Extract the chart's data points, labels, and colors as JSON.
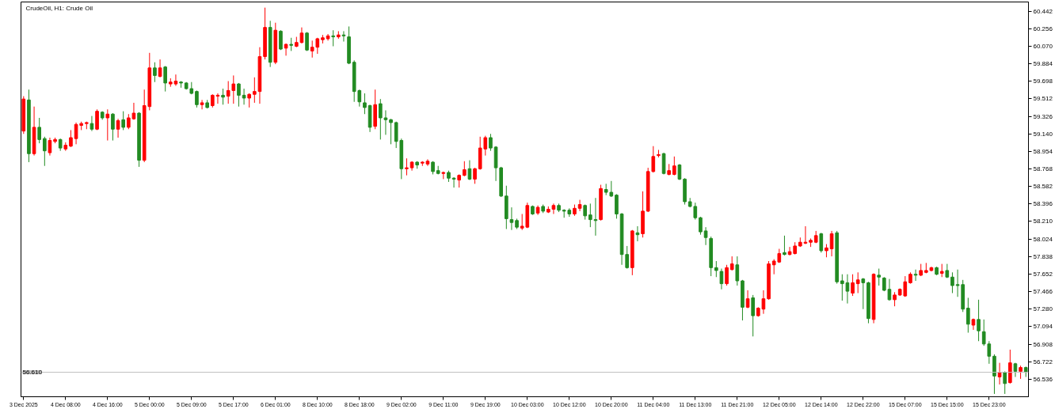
{
  "chart_data": {
    "type": "candlestick",
    "title": "CrudeOil, H1: Crude Oil",
    "categories": [
      "3 Dec 2025",
      null,
      null,
      null,
      null,
      null,
      null,
      null,
      "4 Dec 08:00",
      null,
      null,
      null,
      null,
      null,
      null,
      null,
      "4 Dec 16:00",
      null,
      null,
      null,
      null,
      null,
      null,
      null,
      "5 Dec 00:00",
      null,
      null,
      null,
      null,
      null,
      null,
      null,
      "5 Dec 09:00",
      null,
      null,
      null,
      null,
      null,
      null,
      null,
      "5 Dec 17:00",
      null,
      null,
      null,
      null,
      null,
      null,
      null,
      "6 Dec 01:00",
      null,
      null,
      null,
      null,
      null,
      null,
      null,
      "8 Dec 10:00",
      null,
      null,
      null,
      null,
      null,
      null,
      null,
      "8 Dec 18:00",
      null,
      null,
      null,
      null,
      null,
      null,
      null,
      "9 Dec 02:00",
      null,
      null,
      null,
      null,
      null,
      null,
      null,
      "9 Dec 11:00",
      null,
      null,
      null,
      null,
      null,
      null,
      null,
      "9 Dec 19:00",
      null,
      null,
      null,
      null,
      null,
      null,
      null,
      "10 Dec 03:00",
      null,
      null,
      null,
      null,
      null,
      null,
      null,
      "10 Dec 12:00",
      null,
      null,
      null,
      null,
      null,
      null,
      null,
      "10 Dec 20:00",
      null,
      null,
      null,
      null,
      null,
      null,
      null,
      "11 Dec 04:00",
      null,
      null,
      null,
      null,
      null,
      null,
      null,
      "11 Dec 13:00",
      null,
      null,
      null,
      null,
      null,
      null,
      null,
      "11 Dec 21:00",
      null,
      null,
      null,
      null,
      null,
      null,
      null,
      "12 Dec 05:00",
      null,
      null,
      null,
      null,
      null,
      null,
      null,
      "12 Dec 14:00",
      null,
      null,
      null,
      null,
      null,
      null,
      null,
      "12 Dec 22:00",
      null,
      null,
      null,
      null,
      null,
      null,
      null,
      "15 Dec 07:00",
      null,
      null,
      null,
      null,
      null,
      null,
      null,
      "15 Dec 15:00",
      null,
      null,
      null,
      null,
      null,
      null,
      null,
      "15 Dec 23:00",
      null,
      null,
      null,
      null,
      null,
      null,
      null
    ],
    "ohlc": [
      [
        59.17,
        59.54,
        59.14,
        59.51
      ],
      [
        59.5,
        59.61,
        58.84,
        58.93
      ],
      [
        58.93,
        59.43,
        58.91,
        59.21
      ],
      [
        59.21,
        59.31,
        59.04,
        59.08
      ],
      [
        59.09,
        59.11,
        58.8,
        58.96
      ],
      [
        58.94,
        59.1,
        58.91,
        59.07
      ],
      [
        59.06,
        59.1,
        59.04,
        59.08
      ],
      [
        59.08,
        59.09,
        58.96,
        58.99
      ],
      [
        58.98,
        59.05,
        58.96,
        59.02
      ],
      [
        59.01,
        59.18,
        59.0,
        59.1
      ],
      [
        59.09,
        59.26,
        59.03,
        59.24
      ],
      [
        59.23,
        59.27,
        59.18,
        59.25
      ],
      [
        59.25,
        59.27,
        59.19,
        59.26
      ],
      [
        59.25,
        59.33,
        59.17,
        59.19
      ],
      [
        59.19,
        59.4,
        59.18,
        59.38
      ],
      [
        59.37,
        59.38,
        59.29,
        59.31
      ],
      [
        59.31,
        59.4,
        59.07,
        59.35
      ],
      [
        59.35,
        59.36,
        59.07,
        59.19
      ],
      [
        59.19,
        59.3,
        59.1,
        59.28
      ],
      [
        59.29,
        59.38,
        59.18,
        59.21
      ],
      [
        59.21,
        59.35,
        59.19,
        59.31
      ],
      [
        59.3,
        59.47,
        59.29,
        59.36
      ],
      [
        59.36,
        59.37,
        58.79,
        58.86
      ],
      [
        58.86,
        59.61,
        58.84,
        59.44
      ],
      [
        59.43,
        60.0,
        59.39,
        59.84
      ],
      [
        59.84,
        59.9,
        59.69,
        59.76
      ],
      [
        59.75,
        59.93,
        59.74,
        59.84
      ],
      [
        59.85,
        59.86,
        59.59,
        59.68
      ],
      [
        59.67,
        59.73,
        59.64,
        59.69
      ],
      [
        59.67,
        59.77,
        59.65,
        59.7
      ],
      [
        59.69,
        59.7,
        59.63,
        59.68
      ],
      [
        59.68,
        59.69,
        59.61,
        59.62
      ],
      [
        59.62,
        59.69,
        59.56,
        59.57
      ],
      [
        59.59,
        59.6,
        59.42,
        59.45
      ],
      [
        59.45,
        59.5,
        59.4,
        59.47
      ],
      [
        59.47,
        59.5,
        59.41,
        59.42
      ],
      [
        59.44,
        59.56,
        59.42,
        59.55
      ],
      [
        59.54,
        59.57,
        59.46,
        59.55
      ],
      [
        59.55,
        59.62,
        59.45,
        59.53
      ],
      [
        59.54,
        59.7,
        59.46,
        59.6
      ],
      [
        59.6,
        59.76,
        59.46,
        59.67
      ],
      [
        59.67,
        59.68,
        59.43,
        59.55
      ],
      [
        59.55,
        59.62,
        59.45,
        59.52
      ],
      [
        59.52,
        59.57,
        59.42,
        59.56
      ],
      [
        59.56,
        59.74,
        59.47,
        59.59
      ],
      [
        59.59,
        60.06,
        59.46,
        59.96
      ],
      [
        59.96,
        60.48,
        59.93,
        60.27
      ],
      [
        60.27,
        60.34,
        59.85,
        59.9
      ],
      [
        59.9,
        60.32,
        59.88,
        60.24
      ],
      [
        60.23,
        60.24,
        60.03,
        60.04
      ],
      [
        60.05,
        60.1,
        59.97,
        60.09
      ],
      [
        60.09,
        60.16,
        60.02,
        60.08
      ],
      [
        60.07,
        60.17,
        60.06,
        60.11
      ],
      [
        60.11,
        60.27,
        60.1,
        60.21
      ],
      [
        60.21,
        60.22,
        60.02,
        60.03
      ],
      [
        60.02,
        60.13,
        59.95,
        60.06
      ],
      [
        60.06,
        60.16,
        59.99,
        60.15
      ],
      [
        60.14,
        60.19,
        60.1,
        60.16
      ],
      [
        60.15,
        60.2,
        60.13,
        60.18
      ],
      [
        60.18,
        60.24,
        60.07,
        60.17
      ],
      [
        60.17,
        60.23,
        60.15,
        60.19
      ],
      [
        60.19,
        60.23,
        60.12,
        60.18
      ],
      [
        60.17,
        60.28,
        59.88,
        59.89
      ],
      [
        59.9,
        59.92,
        59.48,
        59.59
      ],
      [
        59.6,
        59.61,
        59.43,
        59.48
      ],
      [
        59.47,
        59.57,
        59.35,
        59.42
      ],
      [
        59.44,
        59.45,
        59.16,
        59.21
      ],
      [
        59.22,
        59.61,
        59.19,
        59.45
      ],
      [
        59.46,
        59.51,
        59.08,
        59.31
      ],
      [
        59.31,
        59.39,
        59.13,
        59.29
      ],
      [
        59.29,
        59.3,
        59.03,
        59.26
      ],
      [
        59.26,
        59.27,
        58.99,
        59.06
      ],
      [
        59.07,
        59.09,
        58.66,
        58.77
      ],
      [
        58.77,
        58.88,
        58.7,
        58.78
      ],
      [
        58.78,
        58.85,
        58.75,
        58.84
      ],
      [
        58.84,
        58.85,
        58.77,
        58.81
      ],
      [
        58.83,
        58.85,
        58.8,
        58.84
      ],
      [
        58.82,
        58.87,
        58.8,
        58.85
      ],
      [
        58.84,
        58.85,
        58.71,
        58.74
      ],
      [
        58.75,
        58.8,
        58.71,
        58.72
      ],
      [
        58.72,
        58.74,
        58.66,
        58.73
      ],
      [
        58.73,
        58.75,
        58.63,
        58.67
      ],
      [
        58.67,
        58.68,
        58.57,
        58.66
      ],
      [
        58.65,
        58.71,
        58.57,
        58.7
      ],
      [
        58.7,
        58.85,
        58.69,
        58.76
      ],
      [
        58.77,
        58.86,
        58.65,
        58.66
      ],
      [
        58.66,
        58.78,
        58.61,
        58.77
      ],
      [
        58.77,
        59.11,
        58.76,
        58.99
      ],
      [
        58.98,
        59.12,
        58.91,
        59.1
      ],
      [
        59.1,
        59.14,
        58.96,
        58.99
      ],
      [
        59.0,
        59.01,
        58.64,
        58.78
      ],
      [
        58.78,
        58.79,
        58.47,
        58.48
      ],
      [
        58.48,
        58.59,
        58.13,
        58.24
      ],
      [
        58.23,
        58.36,
        58.12,
        58.2
      ],
      [
        58.22,
        58.24,
        58.13,
        58.15
      ],
      [
        58.14,
        58.29,
        58.12,
        58.16
      ],
      [
        58.15,
        58.41,
        58.14,
        58.38
      ],
      [
        58.37,
        58.38,
        58.28,
        58.29
      ],
      [
        58.3,
        58.38,
        58.28,
        58.36
      ],
      [
        58.37,
        58.39,
        58.3,
        58.32
      ],
      [
        58.31,
        58.37,
        58.3,
        58.34
      ],
      [
        58.34,
        58.4,
        58.29,
        58.38
      ],
      [
        58.38,
        58.4,
        58.31,
        58.33
      ],
      [
        58.33,
        58.34,
        58.25,
        58.32
      ],
      [
        58.33,
        58.35,
        58.26,
        58.29
      ],
      [
        58.29,
        58.39,
        58.27,
        58.35
      ],
      [
        58.35,
        58.44,
        58.32,
        58.39
      ],
      [
        58.38,
        58.39,
        58.23,
        58.27
      ],
      [
        58.28,
        58.4,
        58.15,
        58.23
      ],
      [
        58.23,
        58.46,
        58.06,
        58.22
      ],
      [
        58.23,
        58.6,
        58.22,
        58.56
      ],
      [
        58.55,
        58.61,
        58.49,
        58.52
      ],
      [
        58.52,
        58.64,
        58.47,
        58.48
      ],
      [
        58.49,
        58.5,
        58.24,
        58.29
      ],
      [
        58.29,
        58.3,
        57.75,
        57.86
      ],
      [
        57.86,
        57.95,
        57.71,
        57.72
      ],
      [
        57.72,
        58.12,
        57.64,
        58.11
      ],
      [
        58.09,
        58.16,
        58.0,
        58.07
      ],
      [
        58.08,
        58.53,
        58.04,
        58.32
      ],
      [
        58.32,
        58.78,
        58.31,
        58.74
      ],
      [
        58.74,
        59.01,
        58.73,
        58.9
      ],
      [
        58.91,
        58.97,
        58.89,
        58.92
      ],
      [
        58.93,
        58.94,
        58.71,
        58.72
      ],
      [
        58.71,
        58.82,
        58.7,
        58.75
      ],
      [
        58.71,
        58.9,
        58.7,
        58.8
      ],
      [
        58.81,
        58.82,
        58.65,
        58.66
      ],
      [
        58.66,
        58.67,
        58.39,
        58.42
      ],
      [
        58.42,
        58.46,
        58.36,
        58.37
      ],
      [
        58.37,
        58.41,
        58.23,
        58.25
      ],
      [
        58.25,
        58.26,
        58.07,
        58.1
      ],
      [
        58.11,
        58.15,
        57.96,
        58.04
      ],
      [
        58.03,
        58.05,
        57.63,
        57.72
      ],
      [
        57.72,
        57.79,
        57.62,
        57.69
      ],
      [
        57.68,
        57.71,
        57.49,
        57.55
      ],
      [
        57.55,
        57.75,
        57.53,
        57.72
      ],
      [
        57.7,
        57.84,
        57.69,
        57.76
      ],
      [
        57.75,
        57.84,
        57.53,
        57.58
      ],
      [
        57.58,
        57.59,
        57.16,
        57.3
      ],
      [
        57.3,
        57.48,
        57.29,
        57.39
      ],
      [
        57.4,
        57.43,
        56.99,
        57.21
      ],
      [
        57.21,
        57.3,
        57.2,
        57.29
      ],
      [
        57.28,
        57.48,
        57.23,
        57.39
      ],
      [
        57.39,
        57.79,
        57.38,
        57.76
      ],
      [
        57.75,
        57.81,
        57.65,
        57.79
      ],
      [
        57.78,
        57.92,
        57.77,
        57.87
      ],
      [
        57.88,
        58.06,
        57.85,
        57.86
      ],
      [
        57.86,
        57.94,
        57.85,
        57.89
      ],
      [
        57.87,
        57.99,
        57.86,
        57.95
      ],
      [
        57.95,
        58.04,
        57.94,
        57.99
      ],
      [
        57.98,
        58.16,
        57.97,
        57.99
      ],
      [
        57.99,
        58.03,
        57.94,
        58.01
      ],
      [
        57.99,
        58.11,
        57.98,
        58.06
      ],
      [
        58.08,
        58.09,
        57.88,
        57.9
      ],
      [
        57.9,
        57.97,
        57.83,
        57.93
      ],
      [
        57.92,
        58.11,
        57.84,
        58.08
      ],
      [
        58.09,
        58.11,
        57.55,
        57.57
      ],
      [
        57.58,
        57.65,
        57.37,
        57.55
      ],
      [
        57.56,
        57.65,
        57.34,
        57.47
      ],
      [
        57.45,
        57.65,
        57.42,
        57.56
      ],
      [
        57.55,
        57.67,
        57.45,
        57.59
      ],
      [
        57.6,
        57.61,
        57.28,
        57.56
      ],
      [
        57.56,
        57.57,
        57.13,
        57.18
      ],
      [
        57.17,
        57.66,
        57.13,
        57.65
      ],
      [
        57.64,
        57.71,
        57.53,
        57.62
      ],
      [
        57.61,
        57.62,
        57.47,
        57.48
      ],
      [
        57.49,
        57.6,
        57.37,
        57.38
      ],
      [
        57.38,
        57.46,
        57.31,
        57.43
      ],
      [
        57.43,
        57.5,
        57.42,
        57.49
      ],
      [
        57.42,
        57.63,
        57.41,
        57.57
      ],
      [
        57.56,
        57.67,
        57.55,
        57.65
      ],
      [
        57.65,
        57.7,
        57.58,
        57.64
      ],
      [
        57.64,
        57.76,
        57.63,
        57.69
      ],
      [
        57.67,
        57.77,
        57.66,
        57.69
      ],
      [
        57.69,
        57.73,
        57.68,
        57.72
      ],
      [
        57.72,
        57.73,
        57.64,
        57.65
      ],
      [
        57.66,
        57.76,
        57.62,
        57.68
      ],
      [
        57.69,
        57.76,
        57.61,
        57.62
      ],
      [
        57.62,
        57.67,
        57.45,
        57.53
      ],
      [
        57.54,
        57.7,
        57.41,
        57.53
      ],
      [
        57.54,
        57.59,
        57.25,
        57.28
      ],
      [
        57.29,
        57.4,
        57.03,
        57.12
      ],
      [
        57.11,
        57.18,
        57.06,
        57.17
      ],
      [
        57.17,
        57.38,
        56.94,
        57.05
      ],
      [
        57.04,
        57.17,
        56.89,
        56.91
      ],
      [
        56.91,
        56.94,
        56.7,
        56.78
      ],
      [
        56.78,
        56.8,
        56.38,
        56.57
      ],
      [
        56.56,
        56.71,
        56.48,
        56.61
      ],
      [
        56.61,
        56.62,
        56.38,
        56.49
      ],
      [
        56.5,
        56.85,
        56.49,
        56.71
      ],
      [
        56.7,
        56.71,
        56.56,
        56.62
      ],
      [
        56.62,
        56.68,
        56.54,
        56.66
      ],
      [
        56.66,
        56.67,
        56.56,
        56.61
      ]
    ],
    "colors": [
      "#ff0000",
      "#228b22",
      "#ff0000",
      "#228b22",
      "#228b22",
      "#ff0000",
      "#ff0000",
      "#228b22",
      "#ff0000",
      "#ff0000",
      "#ff0000",
      "#ff0000",
      "#ff0000",
      "#228b22",
      "#ff0000",
      "#228b22",
      "#ff0000",
      "#228b22",
      "#ff0000",
      "#228b22",
      "#ff0000",
      "#ff0000",
      "#228b22",
      "#ff0000",
      "#ff0000",
      "#228b22",
      "#ff0000",
      "#228b22",
      "#ff0000",
      "#ff0000",
      "#228b22",
      "#228b22",
      "#228b22",
      "#228b22",
      "#ff0000",
      "#228b22",
      "#ff0000",
      "#ff0000",
      "#228b22",
      "#ff0000",
      "#ff0000",
      "#228b22",
      "#228b22",
      "#ff0000",
      "#ff0000",
      "#ff0000",
      "#ff0000",
      "#228b22",
      "#ff0000",
      "#228b22",
      "#ff0000",
      "#228b22",
      "#ff0000",
      "#ff0000",
      "#228b22",
      "#ff0000",
      "#ff0000",
      "#ff0000",
      "#ff0000",
      "#228b22",
      "#ff0000",
      "#228b22",
      "#228b22",
      "#228b22",
      "#228b22",
      "#228b22",
      "#228b22",
      "#ff0000",
      "#228b22",
      "#228b22",
      "#228b22",
      "#228b22",
      "#228b22",
      "#ff0000",
      "#ff0000",
      "#228b22",
      "#ff0000",
      "#ff0000",
      "#228b22",
      "#228b22",
      "#ff0000",
      "#228b22",
      "#228b22",
      "#ff0000",
      "#ff0000",
      "#228b22",
      "#ff0000",
      "#ff0000",
      "#ff0000",
      "#228b22",
      "#228b22",
      "#228b22",
      "#228b22",
      "#228b22",
      "#228b22",
      "#ff0000",
      "#ff0000",
      "#228b22",
      "#ff0000",
      "#228b22",
      "#ff0000",
      "#ff0000",
      "#228b22",
      "#228b22",
      "#228b22",
      "#ff0000",
      "#ff0000",
      "#228b22",
      "#228b22",
      "#228b22",
      "#ff0000",
      "#228b22",
      "#228b22",
      "#228b22",
      "#228b22",
      "#228b22",
      "#ff0000",
      "#228b22",
      "#ff0000",
      "#ff0000",
      "#ff0000",
      "#ff0000",
      "#228b22",
      "#ff0000",
      "#ff0000",
      "#228b22",
      "#228b22",
      "#228b22",
      "#228b22",
      "#228b22",
      "#228b22",
      "#228b22",
      "#228b22",
      "#228b22",
      "#ff0000",
      "#ff0000",
      "#228b22",
      "#228b22",
      "#ff0000",
      "#228b22",
      "#ff0000",
      "#ff0000",
      "#ff0000",
      "#ff0000",
      "#ff0000",
      "#228b22",
      "#ff0000",
      "#ff0000",
      "#ff0000",
      "#ff0000",
      "#ff0000",
      "#ff0000",
      "#228b22",
      "#ff0000",
      "#ff0000",
      "#228b22",
      "#228b22",
      "#228b22",
      "#ff0000",
      "#ff0000",
      "#228b22",
      "#228b22",
      "#ff0000",
      "#228b22",
      "#228b22",
      "#228b22",
      "#ff0000",
      "#ff0000",
      "#ff0000",
      "#ff0000",
      "#228b22",
      "#ff0000",
      "#ff0000",
      "#ff0000",
      "#228b22",
      "#ff0000",
      "#228b22",
      "#228b22",
      "#228b22",
      "#228b22",
      "#228b22",
      "#ff0000",
      "#228b22",
      "#228b22",
      "#228b22",
      "#228b22",
      "#ff0000",
      "#228b22",
      "#ff0000",
      "#228b22",
      "#ff0000",
      "#228b22"
    ],
    "ylim": [
      56.35,
      60.54
    ],
    "yticks": [
      {
        "value": 60.442,
        "label": "60.442"
      },
      {
        "value": 60.256,
        "label": "60.256"
      },
      {
        "value": 60.07,
        "label": "60.070"
      },
      {
        "value": 59.884,
        "label": "59.884"
      },
      {
        "value": 59.698,
        "label": "59.698"
      },
      {
        "value": 59.512,
        "label": "59.512"
      },
      {
        "value": 59.326,
        "label": "59.326"
      },
      {
        "value": 59.14,
        "label": "59.140"
      },
      {
        "value": 58.954,
        "label": "58.954"
      },
      {
        "value": 58.768,
        "label": "58.768"
      },
      {
        "value": 58.582,
        "label": "58.582"
      },
      {
        "value": 58.396,
        "label": "58.396"
      },
      {
        "value": 58.21,
        "label": "58.210"
      },
      {
        "value": 58.024,
        "label": "58.024"
      },
      {
        "value": 57.838,
        "label": "57.838"
      },
      {
        "value": 57.652,
        "label": "57.652"
      },
      {
        "value": 57.466,
        "label": "57.466"
      },
      {
        "value": 57.28,
        "label": "57.280"
      },
      {
        "value": 57.094,
        "label": "57.094"
      },
      {
        "value": 56.908,
        "label": "56.908"
      },
      {
        "value": 56.722,
        "label": "56.722"
      },
      {
        "value": 56.536,
        "label": "56.536"
      }
    ],
    "ref_lines": [
      {
        "axis": "y",
        "value": 56.61,
        "label": "56.610",
        "color": "#c0c0c0"
      }
    ],
    "grid": false
  }
}
